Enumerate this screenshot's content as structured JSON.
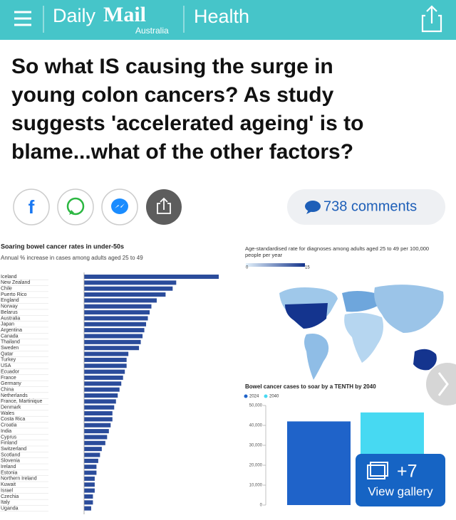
{
  "header": {
    "brand": "Daily",
    "brand_mail": "Mail",
    "edition": "Australia",
    "section": "Health"
  },
  "article": {
    "headline": [
      "So what IS causing the surge in",
      "young colon cancers? As study",
      "suggests 'accelerated ageing' is to",
      "blame...what of the other factors?"
    ],
    "comments": "738 comments"
  },
  "image": {
    "bar_chart": {
      "type": "bar",
      "title": "Soaring bowel cancer rates in under-50s",
      "subtitle": "Annual % increase in cases among adults aged 25 to 49",
      "categories": [
        "Iceland",
        "New Zealand",
        "Chile",
        "Puerto Rico",
        "England",
        "Norway",
        "Belarus",
        "Australia",
        "Japan",
        "Argentina",
        "Canada",
        "Thailand",
        "Sweden",
        "Qatar",
        "Turkey",
        "USA",
        "Ecuador",
        "France",
        "Germany",
        "China",
        "Netherlands",
        "France, Martinique",
        "Denmark",
        "Wales",
        "Costa Rica",
        "Croatia",
        "India",
        "Cyprus",
        "Finland",
        "Switzerland",
        "Scotland",
        "Slovenia",
        "Ireland",
        "Estonia",
        "Northern Ireland",
        "Kuwait",
        "Israel",
        "Czechia",
        "Italy",
        "Uganda"
      ],
      "values": [
        7.6,
        5.2,
        5.0,
        4.6,
        4.1,
        3.8,
        3.7,
        3.6,
        3.5,
        3.4,
        3.3,
        3.2,
        3.1,
        2.5,
        2.4,
        2.4,
        2.3,
        2.2,
        2.1,
        2.0,
        1.9,
        1.8,
        1.7,
        1.6,
        1.6,
        1.5,
        1.4,
        1.3,
        1.2,
        1.0,
        0.9,
        0.8,
        0.7,
        0.7,
        0.6,
        0.6,
        0.6,
        0.5,
        0.5,
        0.4
      ],
      "color": "#2b4c9b"
    },
    "map": {
      "title": [
        "Age-standardised rate for diagnoses among adults aged 25 to 49 per 100,000",
        "people per year"
      ],
      "legend_ticks": [
        0,
        15
      ]
    },
    "cases_chart": {
      "type": "bar",
      "title": "Bowel cancer cases to soar by a TENTH by 2040",
      "series": [
        {
          "name": "2024",
          "color": "#1f63c9",
          "values": [
            42000
          ]
        },
        {
          "name": "2040",
          "color": "#47d9f2",
          "values": [
            46500
          ]
        }
      ],
      "ylim": [
        0,
        50000
      ],
      "yticks": [
        0,
        {
          "value": 10000,
          "label": "10,000"
        },
        {
          "value": 20000,
          "label": "20,000"
        },
        {
          "value": 30000,
          "label": "30,000"
        },
        {
          "value": 40000,
          "label": "40,000"
        },
        {
          "value": 50000,
          "label": "50,000"
        }
      ]
    }
  },
  "gallery": {
    "count": "+7",
    "label": "View gallery"
  }
}
